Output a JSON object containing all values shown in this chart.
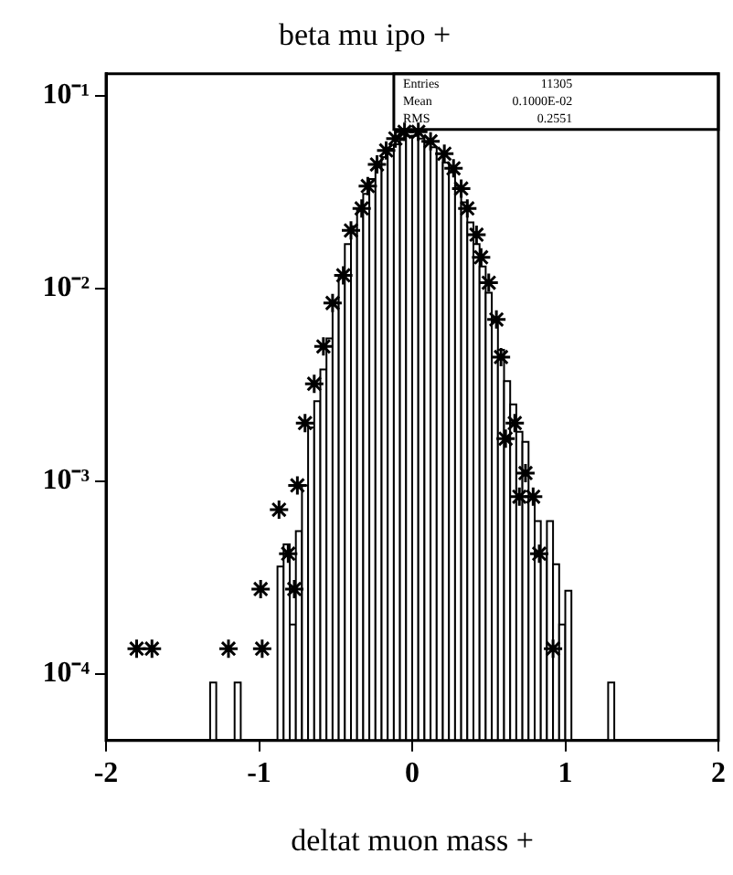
{
  "chart_data": {
    "type": "histogram",
    "title": "beta mu ipo +",
    "xlabel": "deltat muon mass +",
    "xlim": [
      -2,
      2
    ],
    "xticks": [
      -2,
      -1,
      0,
      1,
      2
    ],
    "ylim": [
      4.5e-05,
      0.13
    ],
    "log": "y",
    "yticks": [
      {
        "value": 0.0001,
        "label": "10⁻⁴"
      },
      {
        "value": 0.001,
        "label": "10⁻³"
      },
      {
        "value": 0.01,
        "label": "10⁻²"
      },
      {
        "value": 0.1,
        "label": "10⁻¹"
      }
    ],
    "grid": false,
    "legend": false,
    "marker": "cross",
    "annotations": [
      "Entries 11305",
      "Mean 0.1000E-02",
      "RMS 0.2551"
    ],
    "series": [
      {
        "type": "histogram",
        "color": "#000000",
        "bins": [
          -1.32,
          -1.28,
          -1.16,
          -1.12,
          -0.88,
          -0.84,
          -0.8,
          -0.76,
          -0.72,
          -0.68,
          -0.64,
          -0.6,
          -0.56,
          -0.52,
          -0.48,
          -0.44,
          -0.4,
          -0.36,
          -0.32,
          -0.28,
          -0.24,
          -0.2,
          -0.16,
          -0.12,
          -0.08,
          -0.04,
          0,
          0.04,
          0.08,
          0.12,
          0.16,
          0.2,
          0.24,
          0.28,
          0.32,
          0.36,
          0.4,
          0.44,
          0.48,
          0.52,
          0.56,
          0.6,
          0.64,
          0.68,
          0.72,
          0.76,
          0.8,
          0.84,
          0.88,
          0.92,
          0.96,
          1,
          1.04,
          1.28,
          1.32
        ],
        "values": [
          9e-05,
          null,
          9e-05,
          null,
          0.00036,
          0.00047,
          0.00018,
          0.00055,
          0.00095,
          0.0019,
          0.0026,
          0.0038,
          0.0055,
          0.0085,
          0.0117,
          0.017,
          0.021,
          0.026,
          0.031,
          0.037,
          0.043,
          0.048,
          0.053,
          0.056,
          0.059,
          0.062,
          0.062,
          0.06,
          0.057,
          0.054,
          0.05,
          0.045,
          0.04,
          0.034,
          0.028,
          0.022,
          0.017,
          0.013,
          0.0095,
          0.0068,
          0.0048,
          0.0033,
          0.0025,
          0.0018,
          0.0016,
          0.00083,
          0.00062,
          0.00042,
          0.00062,
          0.00037,
          0.00018,
          0.00027,
          null,
          9e-05
        ]
      },
      {
        "type": "scatter",
        "color": "#000000",
        "x": [
          -1.8,
          -1.7,
          -1.2,
          -0.98,
          -0.99,
          -0.87,
          -0.81,
          -0.77,
          -0.75,
          -0.7,
          -0.64,
          -0.58,
          -0.52,
          -0.45,
          -0.4,
          -0.33,
          -0.29,
          -0.23,
          -0.17,
          -0.11,
          -0.05,
          0.04,
          0.12,
          0.21,
          0.27,
          0.32,
          0.36,
          0.42,
          0.45,
          0.5,
          0.55,
          0.58,
          0.61,
          0.67,
          0.7,
          0.74,
          0.79,
          0.83,
          0.92
        ],
        "values": [
          0.000135,
          0.000135,
          0.000135,
          0.000135,
          0.000275,
          0.00071,
          0.00042,
          0.000275,
          0.00095,
          0.002,
          0.0032,
          0.005,
          0.0084,
          0.0117,
          0.02,
          0.026,
          0.034,
          0.044,
          0.052,
          0.06,
          0.065,
          0.065,
          0.058,
          0.05,
          0.042,
          0.033,
          0.026,
          0.019,
          0.0145,
          0.0107,
          0.0069,
          0.0044,
          0.00166,
          0.002,
          0.00083,
          0.0011,
          0.00083,
          0.00042,
          0.000135
        ]
      }
    ]
  }
}
